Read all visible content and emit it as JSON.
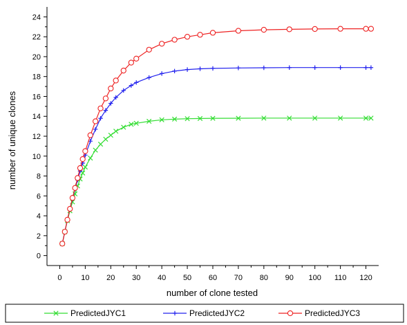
{
  "chart_data": {
    "type": "scatter",
    "title": "",
    "xlabel": "number of clone tested",
    "ylabel": "number of unique clones",
    "xlim": [
      -5,
      125
    ],
    "ylim": [
      -1,
      25
    ],
    "x_ticks": [
      0,
      10,
      20,
      30,
      40,
      50,
      60,
      70,
      80,
      90,
      100,
      110,
      120
    ],
    "y_ticks": [
      0,
      2,
      4,
      6,
      8,
      10,
      12,
      14,
      16,
      18,
      20,
      22,
      24
    ],
    "grid": false,
    "legend_position": "bottom",
    "series": [
      {
        "name": "PredictedJYC1",
        "color": "#33dd33",
        "marker": "x-cross",
        "x": [
          1,
          2,
          3,
          4,
          5,
          6,
          7,
          8,
          9,
          10,
          12,
          14,
          16,
          18,
          20,
          22,
          25,
          28,
          30,
          35,
          40,
          45,
          50,
          55,
          60,
          70,
          80,
          90,
          100,
          110,
          120,
          122
        ],
        "y": [
          1.2,
          2.4,
          3.5,
          4.5,
          5.4,
          6.2,
          7.0,
          7.7,
          8.3,
          8.9,
          9.8,
          10.6,
          11.2,
          11.7,
          12.1,
          12.5,
          12.9,
          13.2,
          13.3,
          13.5,
          13.65,
          13.72,
          13.76,
          13.78,
          13.8,
          13.81,
          13.82,
          13.82,
          13.82,
          13.82,
          13.82,
          13.82
        ]
      },
      {
        "name": "PredictedJYC2",
        "color": "#2222ee",
        "marker": "plus",
        "x": [
          1,
          2,
          3,
          4,
          5,
          6,
          7,
          8,
          9,
          10,
          12,
          14,
          16,
          18,
          20,
          22,
          25,
          28,
          30,
          35,
          40,
          45,
          50,
          55,
          60,
          70,
          80,
          90,
          100,
          110,
          120,
          122
        ],
        "y": [
          1.2,
          2.4,
          3.6,
          4.7,
          5.7,
          6.7,
          7.6,
          8.5,
          9.3,
          10.1,
          11.5,
          12.7,
          13.8,
          14.6,
          15.3,
          15.9,
          16.6,
          17.1,
          17.4,
          17.9,
          18.3,
          18.55,
          18.7,
          18.78,
          18.82,
          18.86,
          18.88,
          18.9,
          18.9,
          18.9,
          18.9,
          18.9
        ]
      },
      {
        "name": "PredictedJYC3",
        "color": "#ee2222",
        "marker": "circle",
        "x": [
          1,
          2,
          3,
          4,
          5,
          6,
          7,
          8,
          9,
          10,
          12,
          14,
          16,
          18,
          20,
          22,
          25,
          28,
          30,
          35,
          40,
          45,
          50,
          55,
          60,
          70,
          80,
          90,
          100,
          110,
          120,
          122
        ],
        "y": [
          1.2,
          2.4,
          3.6,
          4.7,
          5.8,
          6.8,
          7.8,
          8.8,
          9.7,
          10.5,
          12.1,
          13.5,
          14.8,
          15.8,
          16.8,
          17.6,
          18.6,
          19.4,
          19.8,
          20.7,
          21.3,
          21.7,
          22.0,
          22.2,
          22.4,
          22.6,
          22.7,
          22.75,
          22.78,
          22.8,
          22.8,
          22.8
        ]
      }
    ]
  }
}
